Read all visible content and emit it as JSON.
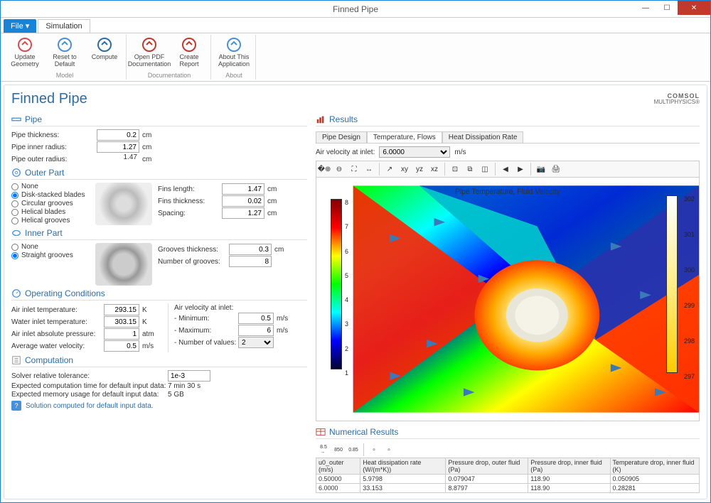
{
  "window_title": "Finned Pipe",
  "menu": {
    "file": "File ▾",
    "simulation": "Simulation"
  },
  "ribbon": {
    "groups": [
      {
        "label": "Model",
        "items": [
          {
            "label": "Update\nGeometry",
            "name": "update-geometry-button",
            "icon_color": "#d94c4c"
          },
          {
            "label": "Reset to\nDefault",
            "name": "reset-default-button",
            "icon_color": "#4a90d9"
          },
          {
            "label": "Compute",
            "name": "compute-button",
            "icon_color": "#2e6da4"
          }
        ]
      },
      {
        "label": "Documentation",
        "items": [
          {
            "label": "Open PDF\nDocumentation",
            "name": "open-pdf-button",
            "icon_color": "#c0392b"
          },
          {
            "label": "Create\nReport",
            "name": "create-report-button",
            "icon_color": "#c0392b"
          }
        ]
      },
      {
        "label": "About",
        "items": [
          {
            "label": "About This\nApplication",
            "name": "about-button",
            "icon_color": "#4a90d9"
          }
        ]
      }
    ]
  },
  "app_title": "Finned Pipe",
  "brand": {
    "line1": "COMSOL",
    "line2": "MULTIPHYSICS®"
  },
  "pipe": {
    "title": "Pipe",
    "thickness_label": "Pipe thickness:",
    "thickness": "0.2",
    "thickness_unit": "cm",
    "inner_radius_label": "Pipe inner radius:",
    "inner_radius": "1.27",
    "inner_radius_unit": "cm",
    "outer_radius_label": "Pipe outer radius:",
    "outer_radius": "1.47",
    "outer_radius_unit": "cm"
  },
  "outer_part": {
    "title": "Outer Part",
    "options": [
      "None",
      "Disk-stacked blades",
      "Circular grooves",
      "Helical blades",
      "Helical grooves"
    ],
    "selected": "Disk-stacked blades",
    "fins_length_label": "Fins length:",
    "fins_length": "1.47",
    "fins_length_unit": "cm",
    "fins_thickness_label": "Fins thickness:",
    "fins_thickness": "0.02",
    "fins_thickness_unit": "cm",
    "spacing_label": "Spacing:",
    "spacing": "1.27",
    "spacing_unit": "cm"
  },
  "inner_part": {
    "title": "Inner Part",
    "options": [
      "None",
      "Straight grooves"
    ],
    "selected": "Straight grooves",
    "grooves_thickness_label": "Grooves thickness:",
    "grooves_thickness": "0.3",
    "grooves_thickness_unit": "cm",
    "num_grooves_label": "Number of grooves:",
    "num_grooves": "8"
  },
  "op_cond": {
    "title": "Operating Conditions",
    "air_temp_label": "Air inlet temperature:",
    "air_temp": "293.15",
    "air_temp_unit": "K",
    "water_temp_label": "Water inlet temperature:",
    "water_temp": "303.15",
    "water_temp_unit": "K",
    "air_pressure_label": "Air inlet absolute pressure:",
    "air_pressure": "1",
    "air_pressure_unit": "atm",
    "water_vel_label": "Average water velocity:",
    "water_vel": "0.5",
    "water_vel_unit": "m/s",
    "air_vel_title": "Air velocity at inlet:",
    "min_label": "- Minimum:",
    "min": "0.5",
    "min_unit": "m/s",
    "max_label": "- Maximum:",
    "max": "6",
    "max_unit": "m/s",
    "num_values_label": "- Number of values:",
    "num_values": "2"
  },
  "computation": {
    "title": "Computation",
    "tol_label": "Solver relative tolerance:",
    "tol": "1e-3",
    "time_label": "Expected computation time for default input data:",
    "time": "7 min 30 s",
    "memory_label": "Expected memory usage for default input data:",
    "memory": "5 GB",
    "status": "Solution computed for default input data."
  },
  "results": {
    "title": "Results",
    "tabs": [
      "Pipe Design",
      "Temperature, Flows",
      "Heat Dissipation Rate"
    ],
    "active_tab": "Temperature, Flows",
    "air_vel_label": "Air velocity at inlet:",
    "air_vel_value": "6.0000",
    "air_vel_unit": "m/s",
    "plot_title": "Pipe Temperature, Fluid Velocity",
    "left_colorbar": {
      "ticks": [
        "8",
        "7",
        "6",
        "5",
        "4",
        "3",
        "2",
        "1"
      ]
    },
    "right_colorbar": {
      "ticks": [
        "302",
        "301",
        "300",
        "299",
        "298",
        "297"
      ]
    }
  },
  "num_results": {
    "title": "Numerical Results",
    "columns": [
      "u0_outer (m/s)",
      "Heat dissipation rate (W/(m*K))",
      "Pressure drop, outer fluid (Pa)",
      "Pressure drop, inner fluid (Pa)",
      "Temperature drop, inner fluid (K)"
    ],
    "rows": [
      [
        "0.50000",
        "5.9798",
        "0.079047",
        "118.90",
        "0.050905"
      ],
      [
        "6.0000",
        "33.153",
        "8.8797",
        "118.90",
        "0.28281"
      ]
    ]
  },
  "toolbar_buttons_850": "850",
  "toolbar_buttons_085": "0.85"
}
